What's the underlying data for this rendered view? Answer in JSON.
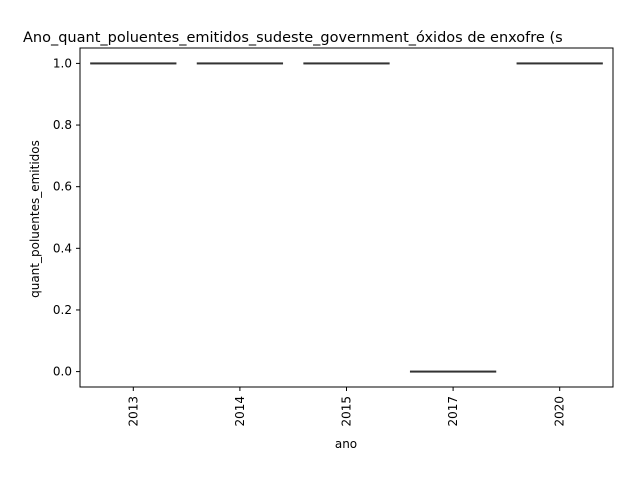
{
  "chart_data": {
    "type": "box",
    "title": "Ano_quant_poluentes_emitidos_sudeste_government_óxidos de enxofre (s",
    "xlabel": "ano",
    "ylabel": "quant_poluentes_emitidos",
    "categories": [
      "2013",
      "2014",
      "2015",
      "2017",
      "2020"
    ],
    "values": [
      1.0,
      1.0,
      1.0,
      0.0,
      1.0
    ],
    "ylim": [
      -0.05,
      1.05
    ],
    "yticks": [
      "0.0",
      "0.2",
      "0.4",
      "0.6",
      "0.8",
      "1.0"
    ],
    "grid": false,
    "colors": {
      "box": "#333333",
      "axis": "#000000"
    }
  }
}
